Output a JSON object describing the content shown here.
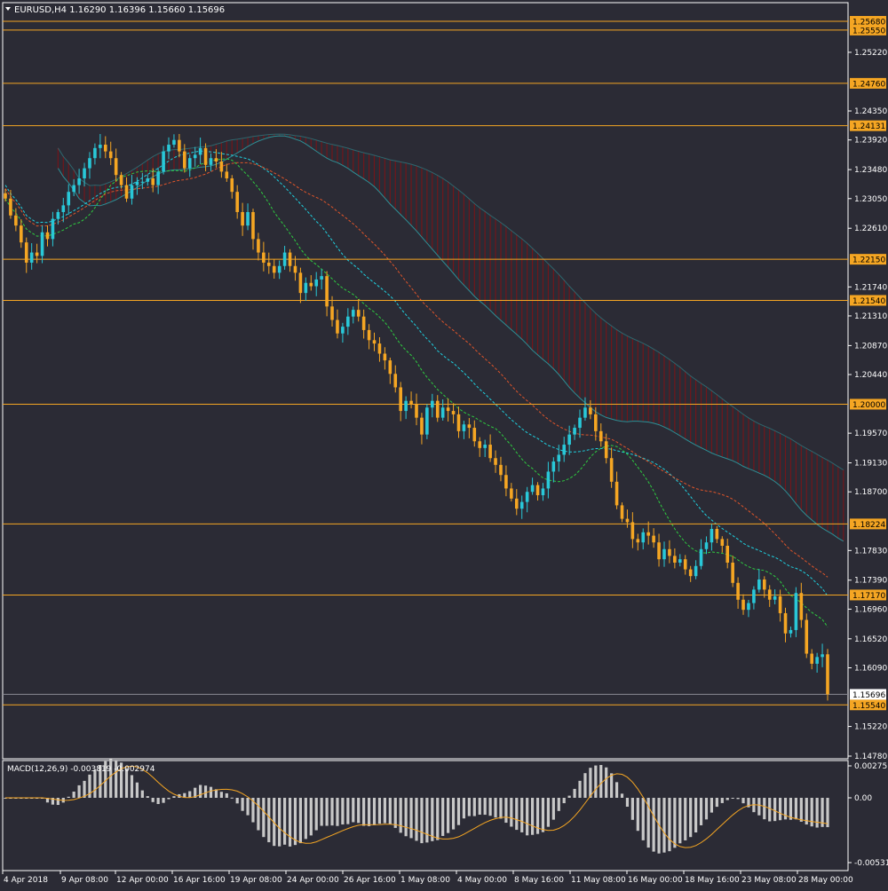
{
  "window": {
    "header_text": "EURUSD,H4  1.16290 1.16396 1.15660 1.15696",
    "symbol": "EURUSD",
    "timeframe": "H4",
    "ohlc": {
      "open": "1.16290",
      "high": "1.16396",
      "low": "1.15660",
      "close": "1.15696"
    }
  },
  "colors": {
    "background": "#2b2b35",
    "axis": "#ffffff",
    "text": "#ffffff",
    "bull_candle": "#29c8d8",
    "bear_candle": "#f5a623",
    "level_line": "#f5a623",
    "level_tag_bg": "#f5a623",
    "level_tag_text": "#000000",
    "current_price_tag_bg": "#ffffff",
    "current_price_tag_text": "#000000",
    "kumo_bear": "#7a1418",
    "kumo_bull": "#2d8f95",
    "tenkan": "#1fd1e0",
    "kijun": "#e0552a",
    "chikou_green": "#2ecc40",
    "macd_hist": "#c8c8c8",
    "macd_signal": "#f5a623"
  },
  "price_axis": {
    "ticks": [
      "1.25220",
      "1.24350",
      "1.23920",
      "1.23480",
      "1.23050",
      "1.22610",
      "1.21740",
      "1.21310",
      "1.20870",
      "1.20440",
      "1.19570",
      "1.19130",
      "1.18700",
      "1.17830",
      "1.17390",
      "1.16960",
      "1.16520",
      "1.16090",
      "1.15220",
      "1.14780"
    ]
  },
  "levels": [
    "1.25680",
    "1.25550",
    "1.24760",
    "1.24131",
    "1.22150",
    "1.21540",
    "1.20000",
    "1.18224",
    "1.17170",
    "1.15540"
  ],
  "current_price": "1.15696",
  "time_axis": {
    "labels": [
      "4 Apr 2018",
      "9 Apr 08:00",
      "12 Apr 00:00",
      "16 Apr 16:00",
      "19 Apr 08:00",
      "24 Apr 00:00",
      "26 Apr 16:00",
      "1 May 08:00",
      "4 May 00:00",
      "8 May 16:00",
      "11 May 08:00",
      "16 May 00:00",
      "18 May 16:00",
      "23 May 08:00",
      "28 May 00:00"
    ]
  },
  "macd": {
    "title": "MACD(12,26,9) -0.003819 -0.002974",
    "ticks": [
      "0.002751",
      "0.00",
      "-0.005314"
    ],
    "value": -0.003819,
    "signal": -0.002974
  },
  "chart_data": {
    "type": "candlestick",
    "instrument": "EURUSD",
    "timeframe": "H4",
    "price_range": [
      1.1478,
      1.2568
    ],
    "closes": [
      1.2305,
      1.228,
      1.2265,
      1.224,
      1.221,
      1.2225,
      1.222,
      1.2255,
      1.2245,
      1.2275,
      1.2285,
      1.2295,
      1.2315,
      1.2325,
      1.2335,
      1.235,
      1.2365,
      1.238,
      1.2385,
      1.2375,
      1.2365,
      1.234,
      1.2325,
      1.2305,
      1.2325,
      1.233,
      1.233,
      1.2335,
      1.2325,
      1.2345,
      1.2375,
      1.2385,
      1.2392,
      1.2375,
      1.235,
      1.2365,
      1.237,
      1.238,
      1.2355,
      1.2365,
      1.236,
      1.2345,
      1.2335,
      1.2315,
      1.2285,
      1.2265,
      1.2285,
      1.2245,
      1.2225,
      1.221,
      1.2205,
      1.2195,
      1.2205,
      1.2225,
      1.2205,
      1.2195,
      1.2165,
      1.218,
      1.2175,
      1.2185,
      1.219,
      1.2145,
      1.2125,
      1.2105,
      1.2115,
      1.213,
      1.214,
      1.213,
      1.211,
      1.2095,
      1.209,
      1.2075,
      1.2065,
      1.2045,
      1.2025,
      1.199,
      1.2005,
      1.2,
      1.198,
      1.1955,
      1.1995,
      1.2005,
      1.198,
      1.1995,
      1.199,
      1.1985,
      1.196,
      1.197,
      1.1965,
      1.1945,
      1.1935,
      1.194,
      1.192,
      1.191,
      1.1895,
      1.1875,
      1.186,
      1.1845,
      1.1855,
      1.187,
      1.188,
      1.1865,
      1.1875,
      1.19,
      1.1915,
      1.1925,
      1.194,
      1.1955,
      1.1965,
      1.198,
      1.1995,
      1.1985,
      1.196,
      1.1945,
      1.192,
      1.1885,
      1.185,
      1.183,
      1.1825,
      1.18,
      1.1795,
      1.181,
      1.1805,
      1.1795,
      1.177,
      1.1785,
      1.1775,
      1.1765,
      1.177,
      1.1755,
      1.1745,
      1.176,
      1.1785,
      1.1795,
      1.1815,
      1.18,
      1.179,
      1.1765,
      1.1735,
      1.171,
      1.1695,
      1.1705,
      1.1725,
      1.174,
      1.1725,
      1.171,
      1.1715,
      1.169,
      1.166,
      1.1665,
      1.172,
      1.168,
      1.163,
      1.1615,
      1.1625,
      1.1629,
      1.15696
    ],
    "ichimoku": {
      "tenkan": "dashed cyan",
      "kijun": "dashed red",
      "kumo": "hatched red/teal"
    },
    "subwindow": "MACD histogram with signal line"
  }
}
